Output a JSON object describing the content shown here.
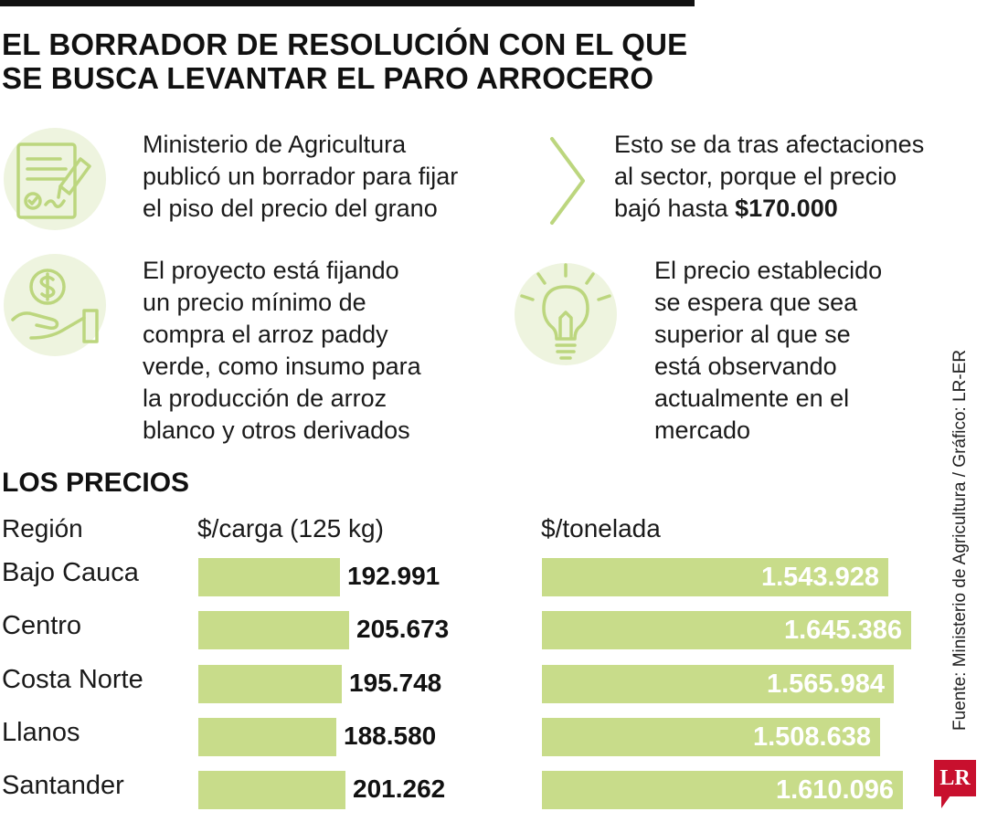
{
  "title": {
    "line1": "EL BORRADOR DE RESOLUCIÓN CON EL QUE",
    "line2": "SE BUSCA LEVANTAR EL PARO ARROCERO"
  },
  "blocks": {
    "b1": [
      "Ministerio de Agricultura",
      "publicó un borrador para fijar",
      "el piso del precio del grano"
    ],
    "b2": {
      "line1": "Esto se da tras afectaciones",
      "line2": "al sector, porque el precio",
      "line3_prefix": "bajó hasta ",
      "line3_bold": "$170.000"
    },
    "b3": [
      "El proyecto está fijando",
      "un precio mínimo de",
      "compra el arroz paddy",
      "verde, como insumo para",
      "la producción de arroz",
      "blanco y otros derivados"
    ],
    "b4": [
      "El precio establecido",
      "se espera que sea",
      "superior al que se",
      "está observando",
      "actualmente en el",
      "mercado"
    ]
  },
  "icons": {
    "b1": "document-signature-icon",
    "b2": "chevron-right-icon",
    "b3": "hand-dollar-coin-icon",
    "b4": "light-bulb-icon"
  },
  "colors": {
    "bar": "#c8dc8a",
    "icon_stroke": "#bcd67e",
    "icon_bg": "#eef4df",
    "logo": "#c8102e"
  },
  "chart_data": {
    "type": "bar",
    "title": "LOS PRECIOS",
    "category_header": "Región",
    "categories": [
      "Bajo Cauca",
      "Centro",
      "Costa Norte",
      "Llanos",
      "Santander"
    ],
    "series": [
      {
        "name": "$/carga (125 kg)",
        "values": [
          192991,
          205673,
          195748,
          188580,
          201262
        ],
        "labels": [
          "192.991",
          "205.673",
          "195.748",
          "188.580",
          "201.262"
        ]
      },
      {
        "name": "$/tonelada",
        "values": [
          1543928,
          1645386,
          1565984,
          1508638,
          1610096
        ],
        "labels": [
          "1.543.928",
          "1.645.386",
          "1.565.984",
          "1.508.638",
          "1.610.096"
        ]
      }
    ]
  },
  "source": "Fuente: Ministerio de Agricultura / Gráfico: LR-ER",
  "logo": "LR"
}
